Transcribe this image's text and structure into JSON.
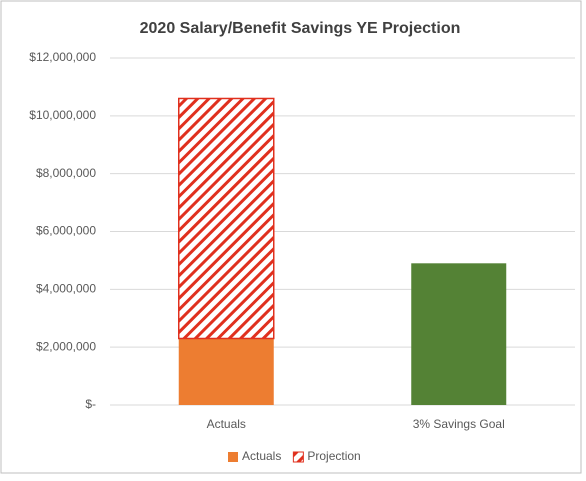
{
  "chart_data": {
    "type": "stacked_bar",
    "title": "2020 Salary/Benefit Savings YE Projection",
    "categories": [
      "Actuals",
      "3% Savings Goal"
    ],
    "series": [
      {
        "name": "Actuals",
        "color": "#ed7d31",
        "point_colors": [
          "#ed7d31",
          "#548235"
        ],
        "values": [
          2300000,
          4900000
        ]
      },
      {
        "name": "Projection",
        "color": "#e0301e",
        "pattern": "hatch",
        "values": [
          8300000,
          null
        ]
      }
    ],
    "ylim": [
      0,
      12000000
    ],
    "yticks": [
      {
        "value": 0,
        "label": "$-"
      },
      {
        "value": 2000000,
        "label": "$2,000,000"
      },
      {
        "value": 4000000,
        "label": "$4,000,000"
      },
      {
        "value": 6000000,
        "label": "$6,000,000"
      },
      {
        "value": 8000000,
        "label": "$8,000,000"
      },
      {
        "value": 10000000,
        "label": "$10,000,000"
      },
      {
        "value": 12000000,
        "label": "$12,000,000"
      }
    ],
    "grid": true,
    "legend": "bottom"
  }
}
